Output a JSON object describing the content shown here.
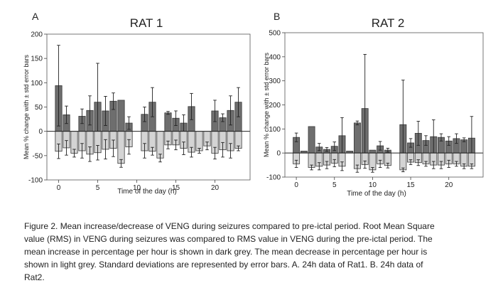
{
  "chart_data": [
    {
      "type": "bar",
      "panel_label": "A",
      "title": "RAT 1",
      "xlabel": "Time of the day (h)",
      "ylabel": "Mean % change with ± std error bars",
      "xlim": [
        -1.5,
        24.5
      ],
      "ylim": [
        -100,
        200
      ],
      "yticks": [
        -100,
        -50,
        0,
        50,
        100,
        150,
        200
      ],
      "xticks": [
        0,
        5,
        10,
        15,
        20
      ],
      "grid": false,
      "x": [
        0,
        1,
        2,
        3,
        4,
        5,
        6,
        7,
        8,
        9,
        10,
        11,
        12,
        13,
        14,
        15,
        16,
        17,
        18,
        19,
        20,
        21,
        22,
        23
      ],
      "series": [
        {
          "name": "Mean increase",
          "color": "#6e6e6e",
          "values": [
            94,
            34,
            null,
            31,
            43,
            60,
            42,
            62,
            64,
            17,
            null,
            35,
            60,
            null,
            38,
            27,
            17,
            51,
            null,
            null,
            42,
            28,
            43,
            60
          ],
          "error": [
            83,
            18,
            null,
            15,
            30,
            80,
            30,
            17,
            0,
            13,
            null,
            15,
            30,
            null,
            3,
            15,
            17,
            27,
            null,
            null,
            22,
            8,
            30,
            30
          ]
        },
        {
          "name": "Mean decrease",
          "color": "#d4d4d4",
          "values": [
            -41,
            -34,
            -45,
            -40,
            -47,
            -44,
            -37,
            -35,
            -66,
            -32,
            null,
            -40,
            -41,
            -55,
            -28,
            -28,
            -35,
            -43,
            -40,
            -30,
            -45,
            -38,
            -40,
            -35
          ],
          "error": [
            15,
            15,
            8,
            15,
            15,
            15,
            20,
            17,
            8,
            15,
            null,
            15,
            8,
            8,
            8,
            10,
            13,
            10,
            5,
            8,
            12,
            15,
            15,
            5
          ]
        }
      ]
    },
    {
      "type": "bar",
      "panel_label": "B",
      "title": "RAT 2",
      "xlabel": "Time of the day (h)",
      "ylabel": "Mean % change with ± std error bars",
      "xlim": [
        -1.5,
        24.5
      ],
      "ylim": [
        -100,
        500
      ],
      "yticks": [
        -100,
        0,
        100,
        200,
        300,
        400,
        500
      ],
      "xticks": [
        0,
        5,
        10,
        15,
        20
      ],
      "grid": false,
      "x": [
        0,
        1,
        2,
        3,
        4,
        5,
        6,
        7,
        8,
        9,
        10,
        11,
        12,
        13,
        14,
        15,
        16,
        17,
        18,
        19,
        20,
        21,
        22,
        23
      ],
      "series": [
        {
          "name": "Mean increase",
          "color": "#6e6e6e",
          "values": [
            65,
            8,
            110,
            25,
            15,
            28,
            72,
            8,
            125,
            185,
            12,
            30,
            12,
            null,
            118,
            42,
            82,
            52,
            68,
            65,
            50,
            60,
            55,
            62
          ],
          "error": [
            18,
            0,
            0,
            15,
            8,
            18,
            75,
            0,
            8,
            225,
            0,
            18,
            8,
            null,
            185,
            18,
            50,
            20,
            70,
            15,
            18,
            20,
            8,
            90
          ]
        },
        {
          "name": "Mean decrease",
          "color": "#d4d4d4",
          "values": [
            -45,
            null,
            -60,
            -55,
            -50,
            -42,
            -55,
            null,
            -65,
            -48,
            -70,
            -45,
            -52,
            null,
            -70,
            -38,
            -40,
            -45,
            -50,
            -50,
            -45,
            -45,
            -55,
            -55
          ],
          "error": [
            15,
            null,
            10,
            15,
            15,
            15,
            18,
            null,
            15,
            15,
            10,
            15,
            10,
            null,
            8,
            10,
            12,
            10,
            15,
            15,
            15,
            10,
            10,
            10
          ]
        }
      ]
    }
  ],
  "caption": {
    "lines": [
      "Figure 2. Mean increase/decrease of VENG during seizures compared to pre-ictal period. Root Mean Square",
      "value (RMS) in VENG during seizures was compared to RMS value in VENG during the pre-ictal period. The",
      "mean increase in percentage per hour is shown in dark grey. The mean decrease in percentage per hour is",
      "shown in light grey.  Standard deviations are represented by error bars. A. 24h data of Rat1. B. 24h data of",
      "Rat2."
    ]
  }
}
